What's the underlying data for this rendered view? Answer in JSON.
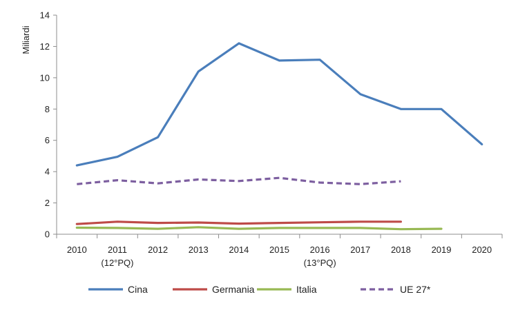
{
  "chart_data": {
    "type": "line",
    "ylabel": "Miliardi",
    "xlabel": "",
    "ylim": [
      0,
      14
    ],
    "yticks": [
      0,
      2,
      4,
      6,
      8,
      10,
      12,
      14
    ],
    "categories": [
      "2010",
      "2011",
      "2012",
      "2013",
      "2014",
      "2015",
      "2016",
      "2017",
      "2018",
      "2019",
      "2020"
    ],
    "category_sublabels": [
      "",
      "(12°PQ)",
      "",
      "",
      "",
      "",
      "(13°PQ)",
      "",
      "",
      "",
      ""
    ],
    "grid": false,
    "legend_position": "bottom",
    "series": [
      {
        "name": "Cina",
        "color": "#4a7ebb",
        "dash": false,
        "values": [
          4.4,
          4.95,
          6.2,
          10.4,
          12.2,
          11.1,
          11.15,
          8.95,
          8.0,
          8.0,
          5.75
        ]
      },
      {
        "name": "Germania",
        "color": "#be4b48",
        "dash": false,
        "values": [
          0.65,
          0.8,
          0.72,
          0.75,
          0.68,
          0.72,
          0.76,
          0.8,
          0.8,
          null,
          null
        ]
      },
      {
        "name": "Italia",
        "color": "#98b954",
        "dash": false,
        "values": [
          0.42,
          0.4,
          0.35,
          0.45,
          0.35,
          0.4,
          0.4,
          0.4,
          0.32,
          0.35,
          null
        ]
      },
      {
        "name": "UE 27*",
        "color": "#7d5fa0",
        "dash": true,
        "values": [
          3.2,
          3.45,
          3.25,
          3.5,
          3.4,
          3.6,
          3.3,
          3.2,
          3.38,
          null,
          null
        ]
      }
    ]
  }
}
